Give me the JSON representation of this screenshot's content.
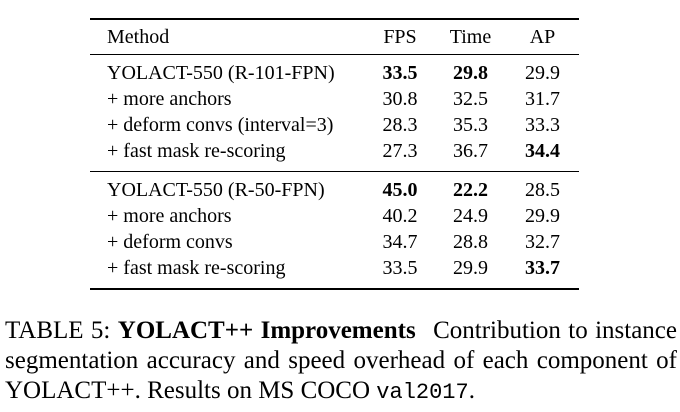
{
  "page": {
    "background_color": "#ffffff",
    "text_color": "#000000"
  },
  "table": {
    "headers": {
      "method": "Method",
      "fps": "FPS",
      "time": "Time",
      "ap": "AP"
    },
    "groups": [
      {
        "rows": [
          {
            "method": "YOLACT-550 (R-101-FPN)",
            "fps": "33.5",
            "time": "29.8",
            "ap": "29.9",
            "bold": [
              "fps",
              "time"
            ]
          },
          {
            "method": "+ more anchors",
            "fps": "30.8",
            "time": "32.5",
            "ap": "31.7",
            "bold": []
          },
          {
            "method": "+ deform convs (interval=3)",
            "fps": "28.3",
            "time": "35.3",
            "ap": "33.3",
            "bold": []
          },
          {
            "method": "+ fast mask re-scoring",
            "fps": "27.3",
            "time": "36.7",
            "ap": "34.4",
            "bold": [
              "ap"
            ]
          }
        ]
      },
      {
        "rows": [
          {
            "method": "YOLACT-550 (R-50-FPN)",
            "fps": "45.0",
            "time": "22.2",
            "ap": "28.5",
            "bold": [
              "fps",
              "time"
            ]
          },
          {
            "method": "+ more anchors",
            "fps": "40.2",
            "time": "24.9",
            "ap": "29.9",
            "bold": []
          },
          {
            "method": "+ deform convs",
            "fps": "34.7",
            "time": "28.8",
            "ap": "32.7",
            "bold": []
          },
          {
            "method": "+ fast mask re-scoring",
            "fps": "33.5",
            "time": "29.9",
            "ap": "33.7",
            "bold": [
              "ap"
            ]
          }
        ]
      }
    ]
  },
  "caption": {
    "label": "TABLE 5:",
    "title": "YOLACT++ Improvements",
    "body": "Contribution to instance segmentation accuracy and speed overhead of each component of YOLACT++. Results on MS COCO",
    "code": "val2017",
    "period": "."
  }
}
